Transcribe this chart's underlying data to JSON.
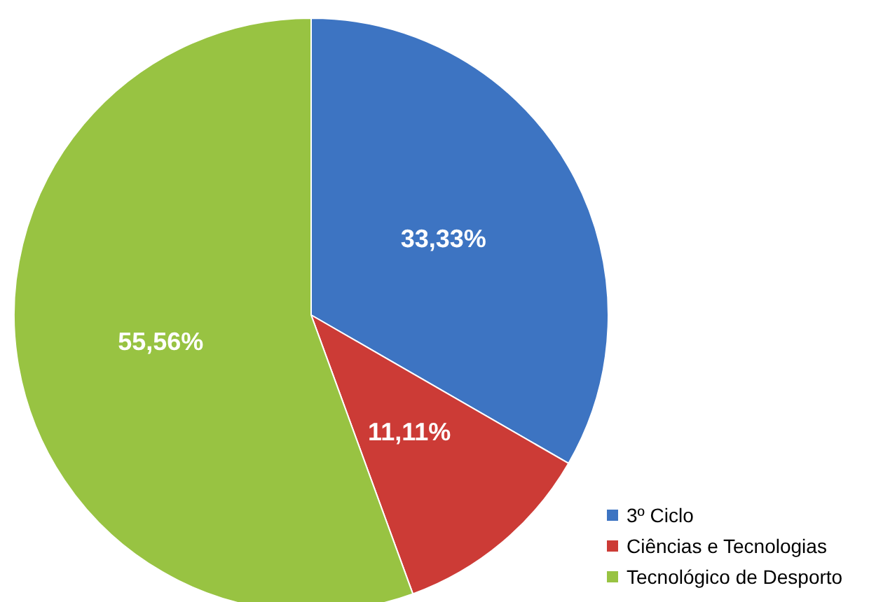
{
  "chart_data": {
    "type": "pie",
    "categories": [
      "3º Ciclo",
      "Ciências e Tecnologias",
      "Tecnológico de Desporto"
    ],
    "values": [
      33.33,
      11.11,
      55.56
    ],
    "colors": [
      "#3d74c2",
      "#cc3b36",
      "#98c342"
    ],
    "value_labels": [
      "33,33%",
      "11,11%",
      "55,56%"
    ],
    "legend": "bottom right"
  }
}
